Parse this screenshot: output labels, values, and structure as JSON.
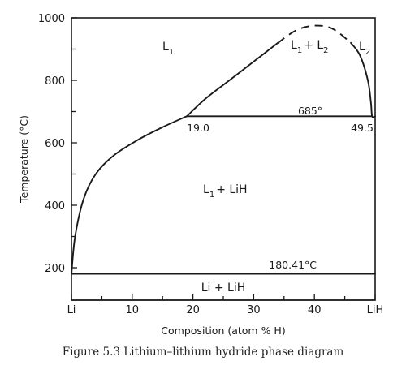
{
  "caption": "Figure 5.3   Lithium–lithium hydride phase diagram",
  "x_axis": {
    "title": "Composition (atom % H)",
    "min": 0,
    "max": 50,
    "ticks": [
      {
        "value": 0,
        "label": "Li"
      },
      {
        "value": 5,
        "label": ""
      },
      {
        "value": 10,
        "label": "10"
      },
      {
        "value": 15,
        "label": ""
      },
      {
        "value": 20,
        "label": "20"
      },
      {
        "value": 25,
        "label": ""
      },
      {
        "value": 30,
        "label": "30"
      },
      {
        "value": 35,
        "label": ""
      },
      {
        "value": 40,
        "label": "40"
      },
      {
        "value": 45,
        "label": ""
      },
      {
        "value": 50,
        "label": "LiH"
      }
    ]
  },
  "y_axis": {
    "title": "Temperature (°C)",
    "min": 180.41,
    "max": 1000,
    "ticks": [
      {
        "value": 200,
        "label": "200"
      },
      {
        "value": 300,
        "label": ""
      },
      {
        "value": 400,
        "label": "400"
      },
      {
        "value": 500,
        "label": ""
      },
      {
        "value": 600,
        "label": "600"
      },
      {
        "value": 700,
        "label": ""
      },
      {
        "value": 800,
        "label": "800"
      },
      {
        "value": 900,
        "label": ""
      },
      {
        "value": 1000,
        "label": "1000"
      }
    ]
  },
  "curves": {
    "liquidus_li_side": [
      [
        0,
        180.41
      ],
      [
        0.6,
        300
      ],
      [
        2,
        420
      ],
      [
        4,
        500
      ],
      [
        7,
        560
      ],
      [
        11,
        610
      ],
      [
        15,
        650
      ],
      [
        19,
        685
      ]
    ],
    "miscibility_solid": [
      [
        19,
        685
      ],
      [
        22,
        740
      ],
      [
        26,
        800
      ],
      [
        30,
        860
      ],
      [
        34,
        920
      ]
    ],
    "miscibility_dashed": [
      [
        34,
        920
      ],
      [
        37,
        960
      ],
      [
        40,
        975
      ],
      [
        43,
        965
      ],
      [
        46,
        920
      ]
    ],
    "liquidus_lih_side": [
      [
        46,
        920
      ],
      [
        47.5,
        880
      ],
      [
        48.8,
        800
      ],
      [
        49.3,
        730
      ],
      [
        49.5,
        685
      ],
      [
        50,
        685
      ]
    ],
    "monotectic": {
      "temperature": 685,
      "x_start": 19,
      "x_end": 49.5
    },
    "eutectic": {
      "temperature": 180.41,
      "x_start": 0,
      "x_end": 50
    }
  },
  "labels": {
    "l1": "L",
    "l1_sub": "1",
    "l1_l2_a": "L",
    "l1_l2_a_sub": "1",
    "l1_l2_plus": "+ L",
    "l1_l2_b_sub": "2",
    "l2": "L",
    "l2_sub": "2",
    "l1_lih": "L",
    "l1_lih_sub": "1",
    "l1_lih_rest": "+ LiH",
    "li_lih": "Li + LiH",
    "monotectic_temp": "685°",
    "eutectic_temp": "180.41°C",
    "monotectic_left": "19.0",
    "monotectic_right": "49.5"
  }
}
